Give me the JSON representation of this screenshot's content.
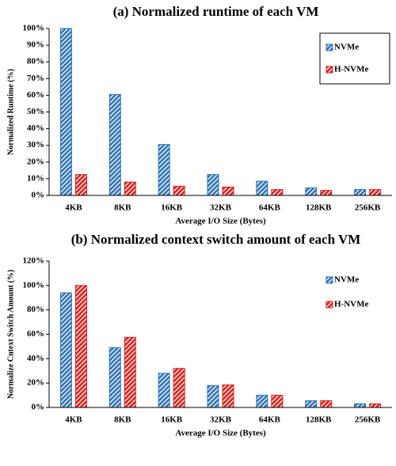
{
  "chart_data": [
    {
      "type": "bar",
      "title": "(a) Normalized runtime of each VM",
      "x_label": "Average I/O Size (Bytes)",
      "y_label": "Normalized Runtime (%)",
      "categories": [
        "4KB",
        "8KB",
        "16KB",
        "32KB",
        "64KB",
        "128KB",
        "256KB"
      ],
      "series": [
        {
          "name": "NVMe",
          "color": "#2e75b6",
          "values": [
            100,
            60.5,
            30.5,
            12.5,
            8.5,
            4.5,
            3.5
          ]
        },
        {
          "name": "H-NVMe",
          "color": "#e0201b",
          "values": [
            12.5,
            8,
            5.5,
            5,
            3.5,
            3,
            3.5
          ]
        }
      ],
      "ylim": [
        0,
        100
      ],
      "yticks": [
        {
          "value": 0,
          "label": "0%"
        },
        {
          "value": 10,
          "label": "10%"
        },
        {
          "value": 20,
          "label": "20%"
        },
        {
          "value": 30,
          "label": "30%"
        },
        {
          "value": 40,
          "label": "40%"
        },
        {
          "value": 50,
          "label": "50%"
        },
        {
          "value": 60,
          "label": "60%"
        },
        {
          "value": 70,
          "label": "70%"
        },
        {
          "value": 80,
          "label": "80%"
        },
        {
          "value": 90,
          "label": "90%"
        },
        {
          "value": 100,
          "label": "100%"
        }
      ],
      "legend": "upper right"
    },
    {
      "type": "bar",
      "title": "(b) Normalized context switch amount of each VM",
      "x_label": "Average I/O Size (Bytes)",
      "y_label": "Normalize Cntext Switch Amount (%)",
      "categories": [
        "4KB",
        "8KB",
        "16KB",
        "32KB",
        "64KB",
        "128KB",
        "256KB"
      ],
      "series": [
        {
          "name": "NVMe",
          "color": "#2e75b6",
          "values": [
            94,
            49,
            28,
            18,
            10,
            5.5,
            3
          ]
        },
        {
          "name": "H-NVMe",
          "color": "#e0201b",
          "values": [
            100,
            57.5,
            32,
            18.5,
            10,
            5.5,
            3
          ]
        }
      ],
      "ylim": [
        0,
        120
      ],
      "yticks": [
        {
          "value": 0,
          "label": "0%"
        },
        {
          "value": 20,
          "label": "20%"
        },
        {
          "value": 40,
          "label": "40%"
        },
        {
          "value": 60,
          "label": "60%"
        },
        {
          "value": 80,
          "label": "80%"
        },
        {
          "value": 100,
          "label": "100%"
        },
        {
          "value": 120,
          "label": "120%"
        }
      ],
      "legend": "upper right"
    }
  ]
}
